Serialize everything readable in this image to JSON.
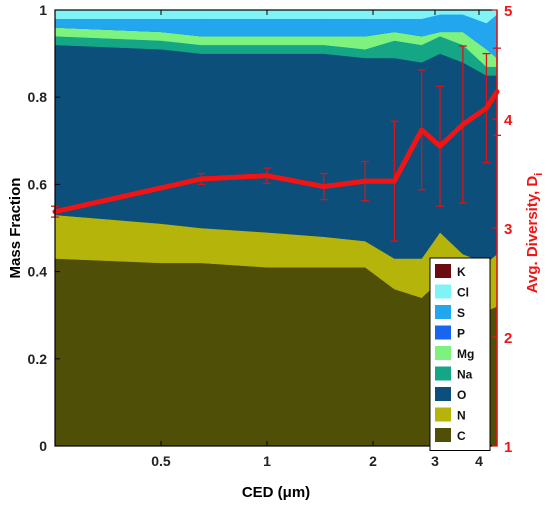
{
  "chart_data": {
    "type": "area",
    "xlabel": "CED (μm)",
    "ylabel": "Mass Fraction",
    "ylabel_right": "Avg. Diversity, D",
    "ylabel_right_subscript": "i",
    "x_scale": "log",
    "xlim": [
      0.25,
      4.5
    ],
    "ylim": [
      0,
      1
    ],
    "ylim_right": [
      1,
      5
    ],
    "xticks": [
      0.5,
      1,
      2,
      3,
      4
    ],
    "xtick_labels": [
      "0.5",
      "1",
      "2",
      "3",
      "4"
    ],
    "yticks": [
      0,
      0.2,
      0.4,
      0.6,
      0.8,
      1
    ],
    "ytick_labels": [
      "0",
      "0.2",
      "0.4",
      "0.6",
      "0.8",
      "1"
    ],
    "yticks_right": [
      1,
      2,
      3,
      4,
      5
    ],
    "ytick_right_labels": [
      "1",
      "2",
      "3",
      "4",
      "5"
    ],
    "grid": false,
    "legend_position": "bottom-right",
    "x": [
      0.25,
      0.5,
      0.65,
      1.0,
      1.45,
      1.9,
      2.3,
      2.75,
      3.1,
      3.6,
      4.2,
      4.5
    ],
    "series": [
      {
        "name": "C",
        "color": "#4f4f08",
        "values": [
          0.43,
          0.42,
          0.42,
          0.41,
          0.41,
          0.41,
          0.36,
          0.34,
          0.38,
          0.34,
          0.31,
          0.32
        ]
      },
      {
        "name": "N",
        "color": "#b5b40a",
        "values": [
          0.1,
          0.09,
          0.08,
          0.08,
          0.07,
          0.06,
          0.07,
          0.09,
          0.11,
          0.1,
          0.11,
          0.12
        ]
      },
      {
        "name": "O",
        "color": "#0b4f7a",
        "values": [
          0.39,
          0.4,
          0.4,
          0.41,
          0.42,
          0.42,
          0.46,
          0.45,
          0.41,
          0.44,
          0.43,
          0.41
        ]
      },
      {
        "name": "Na",
        "color": "#14a685",
        "values": [
          0.02,
          0.02,
          0.02,
          0.02,
          0.02,
          0.02,
          0.04,
          0.04,
          0.04,
          0.04,
          0.02,
          0.02
        ]
      },
      {
        "name": "Mg",
        "color": "#7ef27e",
        "values": [
          0.02,
          0.02,
          0.02,
          0.02,
          0.02,
          0.03,
          0.02,
          0.02,
          0.01,
          0.03,
          0.04,
          0.02
        ]
      },
      {
        "name": "P",
        "color": "#1766f0",
        "values": [
          0.0,
          0.0,
          0.0,
          0.0,
          0.0,
          0.0,
          0.0,
          0.0,
          0.0,
          0.0,
          0.0,
          0.0
        ]
      },
      {
        "name": "S",
        "color": "#22a6ee",
        "values": [
          0.02,
          0.03,
          0.04,
          0.04,
          0.04,
          0.04,
          0.03,
          0.04,
          0.04,
          0.04,
          0.06,
          0.1
        ]
      },
      {
        "name": "Cl",
        "color": "#7ff3f6",
        "values": [
          0.02,
          0.02,
          0.02,
          0.02,
          0.02,
          0.02,
          0.02,
          0.02,
          0.01,
          0.01,
          0.03,
          0.01
        ]
      },
      {
        "name": "K",
        "color": "#6b0c10",
        "values": [
          0.0,
          0.0,
          0.0,
          0.0,
          0.0,
          0.0,
          0.0,
          0.0,
          0.0,
          0.0,
          0.0,
          0.0
        ]
      }
    ],
    "line_series": {
      "name": "Avg. Diversity",
      "axis": "right",
      "color": "#f21414",
      "x": [
        0.25,
        0.65,
        1.0,
        1.45,
        1.9,
        2.3,
        2.75,
        3.1,
        3.6,
        4.2,
        4.5
      ],
      "y": [
        3.15,
        3.45,
        3.48,
        3.38,
        3.43,
        3.43,
        3.9,
        3.75,
        3.95,
        4.1,
        4.25
      ],
      "yerr": [
        0.05,
        0.05,
        0.07,
        0.12,
        0.18,
        0.55,
        0.55,
        0.55,
        0.72,
        0.5,
        0.4
      ]
    }
  }
}
